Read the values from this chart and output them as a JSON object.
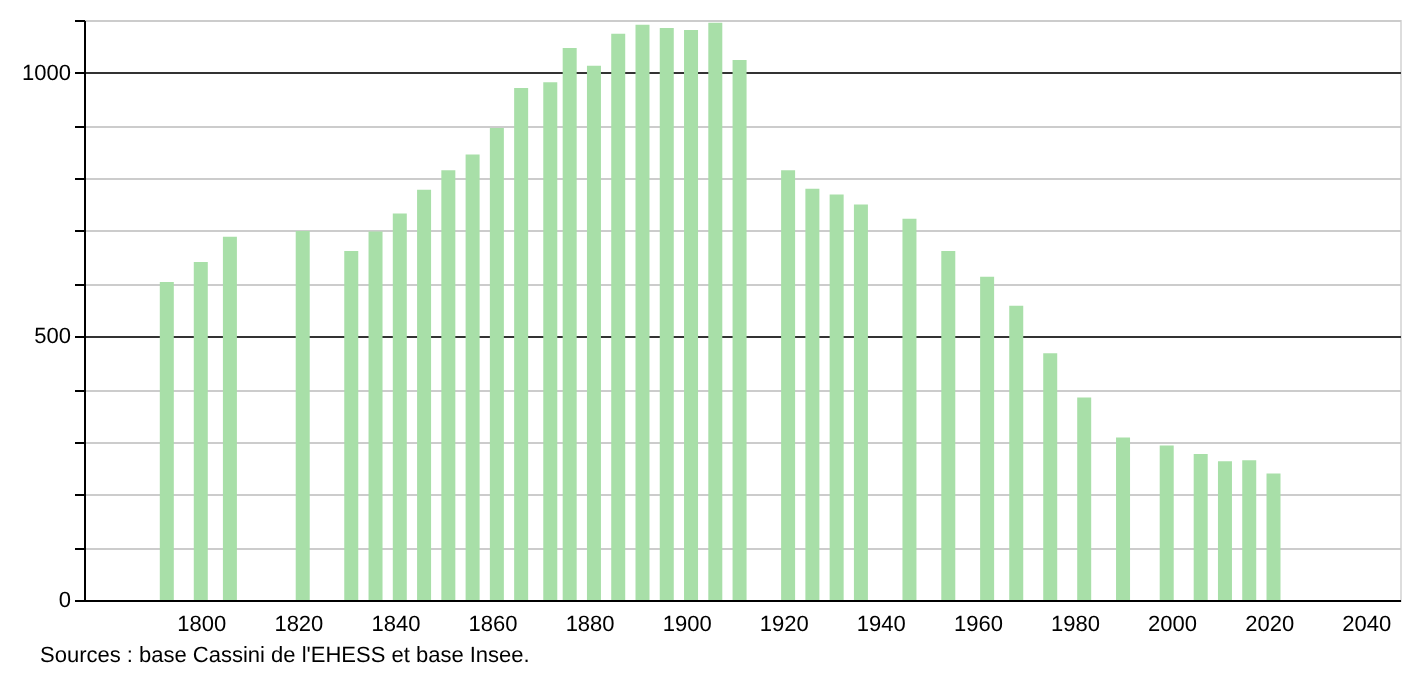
{
  "chart_data": {
    "type": "bar",
    "x": [
      1793,
      1800,
      1806,
      1821,
      1831,
      1836,
      1841,
      1846,
      1851,
      1856,
      1861,
      1866,
      1872,
      1876,
      1881,
      1886,
      1891,
      1896,
      1901,
      1906,
      1911,
      1921,
      1926,
      1931,
      1936,
      1946,
      1954,
      1962,
      1968,
      1975,
      1982,
      1990,
      1999,
      2006,
      2011,
      2016,
      2021
    ],
    "values": [
      603,
      641,
      689,
      700,
      662,
      699,
      733,
      778,
      815,
      845,
      895,
      971,
      982,
      1047,
      1013,
      1074,
      1091,
      1085,
      1081,
      1095,
      1024,
      815,
      780,
      769,
      750,
      723,
      662,
      613,
      558,
      468,
      384,
      308,
      293,
      277,
      263,
      265,
      240
    ],
    "color": "#a8dfa8",
    "xlim": [
      1778,
      2045
    ],
    "xticks": [
      1800,
      1820,
      1840,
      1860,
      1880,
      1900,
      1920,
      1940,
      1960,
      1980,
      2000,
      2020,
      2040
    ],
    "ylim": [
      0,
      1100
    ],
    "yticks": [
      0,
      {
        "value": 100,
        "label": null
      },
      {
        "value": 200,
        "label": null
      },
      {
        "value": 300,
        "label": null
      },
      {
        "value": 400,
        "label": null
      },
      500,
      {
        "value": 600,
        "label": null
      },
      {
        "value": 700,
        "label": null
      },
      {
        "value": 800,
        "label": null
      },
      {
        "value": 900,
        "label": null
      },
      1000,
      {
        "value": 1100,
        "label": null
      }
    ],
    "grid": "y",
    "annotations": [
      "Sources : base Cassini de l'EHESS et base Insee."
    ]
  }
}
